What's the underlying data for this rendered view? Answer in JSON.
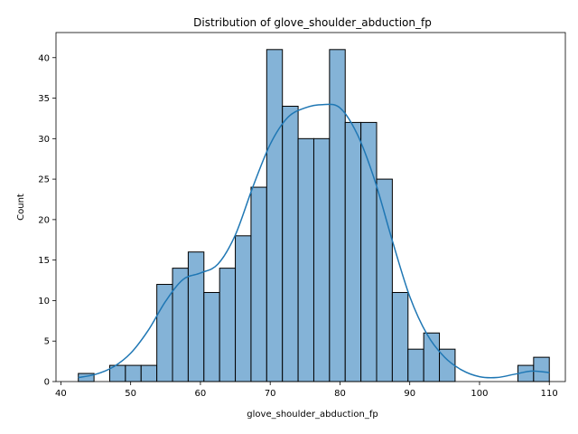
{
  "chart_data": {
    "type": "bar",
    "title": "Distribution of glove_shoulder_abduction_fp",
    "xlabel": "glove_shoulder_abduction_fp",
    "ylabel": "Count",
    "xlim": [
      39.3,
      112.3
    ],
    "ylim": [
      0,
      43.1
    ],
    "xticks": [
      40,
      50,
      60,
      70,
      80,
      90,
      100,
      110
    ],
    "yticks": [
      0,
      5,
      10,
      15,
      20,
      25,
      30,
      35,
      40
    ],
    "bin_start": 42.5,
    "bin_width": 2.25,
    "counts": [
      1,
      0,
      2,
      2,
      2,
      12,
      14,
      16,
      11,
      14,
      18,
      24,
      41,
      34,
      30,
      30,
      41,
      32,
      32,
      25,
      11,
      4,
      6,
      4,
      0,
      0,
      0,
      0,
      2,
      3
    ],
    "kde": {
      "x": [
        42.5,
        45,
        47.5,
        50,
        52.5,
        55,
        57.5,
        60,
        62.5,
        65,
        67.5,
        70,
        72.5,
        75,
        77.5,
        80,
        82.5,
        85,
        87.5,
        90,
        92.5,
        95,
        97.5,
        100,
        102.5,
        105,
        107.5,
        110
      ],
      "y": [
        0.5,
        0.9,
        1.8,
        3.5,
        6.3,
        9.9,
        12.6,
        13.4,
        14.5,
        18.1,
        24.0,
        29.3,
        32.6,
        33.8,
        34.2,
        33.8,
        30.5,
        24.8,
        17.4,
        10.5,
        5.8,
        3.0,
        1.4,
        0.6,
        0.5,
        0.9,
        1.3,
        1.1
      ]
    },
    "bar_color": "#84b3d7",
    "line_color": "#1f77b4",
    "grid": false,
    "legend": "none"
  }
}
